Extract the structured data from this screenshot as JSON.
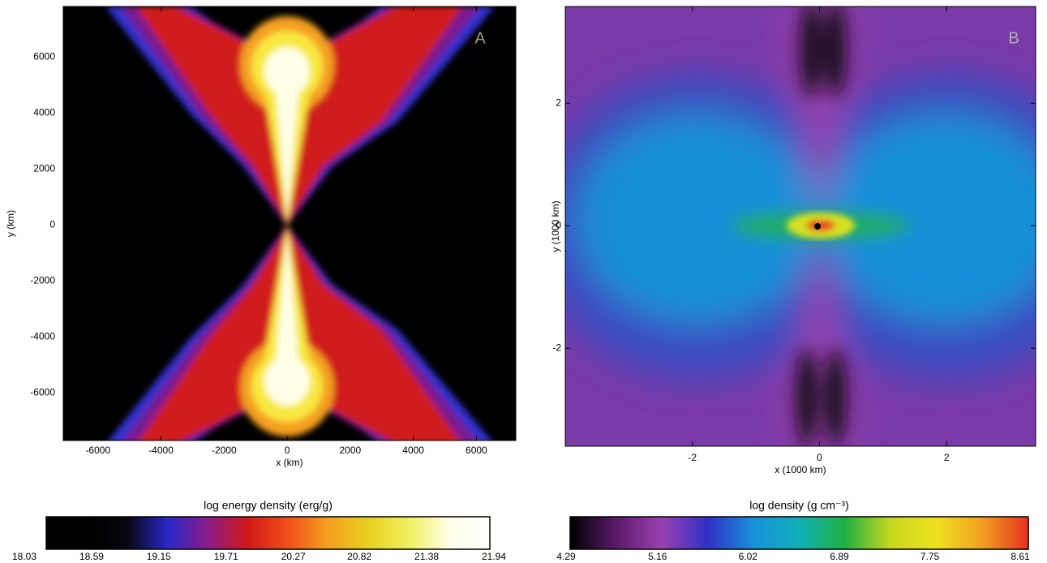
{
  "chart_data": [
    {
      "type": "image",
      "panel_label": "A",
      "xlabel": "x (km)",
      "ylabel": "y (km)",
      "xlim": [
        -7100,
        7250
      ],
      "ylim": [
        -7700,
        7800
      ],
      "xticks": [
        -6000,
        -4000,
        -2000,
        0,
        2000,
        4000,
        6000
      ],
      "yticks": [
        -6000,
        -4000,
        -2000,
        0,
        2000,
        4000,
        6000
      ],
      "colorbar": {
        "label": "log energy density (erg/g)",
        "lim": [
          18.03,
          21.94
        ],
        "ticks": [
          18.03,
          18.59,
          19.15,
          19.71,
          20.27,
          20.82,
          21.38,
          21.94
        ],
        "colors": [
          "#000000",
          "#000000",
          "#06060e",
          "#2828c8",
          "#8a1c8a",
          "#d21818",
          "#f05018",
          "#f5a020",
          "#e8d020",
          "#f0f060",
          "#ffffe8",
          "#ffffff"
        ]
      }
    },
    {
      "type": "image",
      "panel_label": "B",
      "xlabel": "x (1000 km)",
      "ylabel": "y (1000 km)",
      "xlim": [
        -4.0,
        3.4
      ],
      "ylim": [
        -3.6,
        3.58
      ],
      "xticks": [
        -2,
        0,
        2
      ],
      "yticks": [
        -2,
        0,
        2
      ],
      "colorbar": {
        "label": "log density (g cm⁻³)",
        "lim": [
          4.29,
          8.61
        ],
        "ticks": [
          4.29,
          5.16,
          6.02,
          6.89,
          7.75,
          8.61
        ],
        "colors": [
          "#000000",
          "#5a1a6a",
          "#9a40b0",
          "#3030c8",
          "#1890d8",
          "#10b0b8",
          "#20b040",
          "#c8d820",
          "#f0e020",
          "#f0a020",
          "#e83020"
        ]
      }
    }
  ]
}
